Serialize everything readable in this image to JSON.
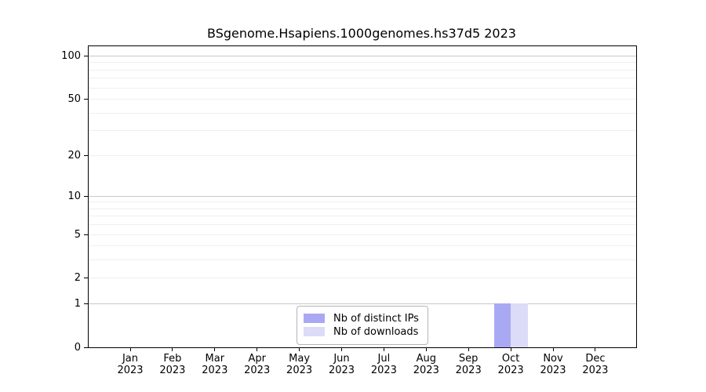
{
  "chart_data": {
    "type": "bar",
    "title": "BSgenome.Hsapiens.1000genomes.hs37d5 2023",
    "categories": [
      "Jan",
      "Feb",
      "Mar",
      "Apr",
      "May",
      "Jun",
      "Jul",
      "Aug",
      "Sep",
      "Oct",
      "Nov",
      "Dec"
    ],
    "xtick_year": "2023",
    "series": [
      {
        "name": "Nb of distinct IPs",
        "color": "#a9a9f3",
        "values": [
          0,
          0,
          0,
          0,
          0,
          0,
          0,
          0,
          0,
          1,
          0,
          0
        ]
      },
      {
        "name": "Nb of downloads",
        "color": "#dcdcf8",
        "values": [
          0,
          0,
          0,
          0,
          0,
          0,
          0,
          0,
          0,
          1,
          0,
          0
        ]
      }
    ],
    "yticks": [
      0,
      1,
      2,
      5,
      10,
      20,
      50,
      100
    ],
    "ylabel": "",
    "xlabel": "",
    "scale": "log10(1+x)",
    "ylim": [
      0,
      116
    ],
    "grid": "horizontal",
    "grid_major": [
      1,
      10,
      100
    ],
    "grid_minor": [
      2,
      3,
      4,
      5,
      6,
      7,
      8,
      9,
      20,
      30,
      40,
      50,
      60,
      70,
      80,
      90
    ],
    "legend_position": "bottom-center-inside",
    "colors": {
      "grid_major": "#c8c8c8",
      "grid_minor": "#efefef",
      "axis": "#000000",
      "legend_border": "#b5b5b5"
    }
  }
}
